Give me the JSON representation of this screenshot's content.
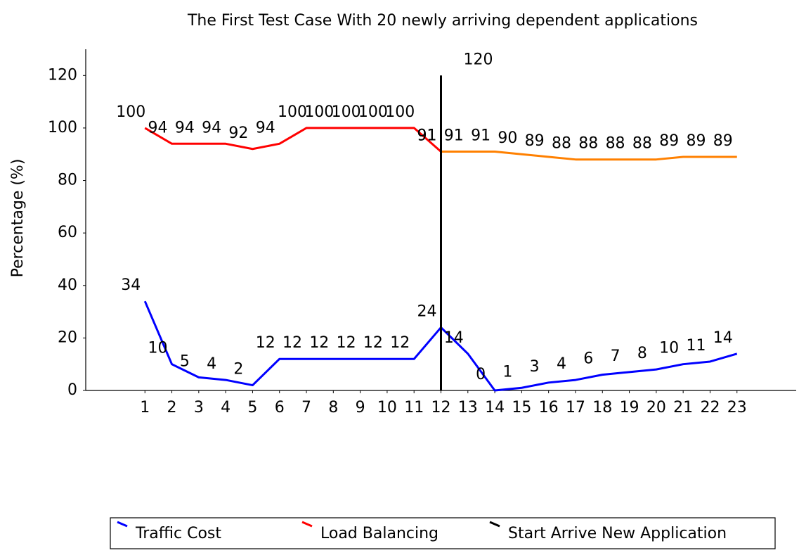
{
  "chart_data": {
    "type": "line",
    "title": "The First Test Case With 20 newly arriving dependent applications",
    "y_label": "Percentage (%)",
    "xlim": [
      -1.2,
      25.2
    ],
    "xticks": [
      1,
      2,
      3,
      4,
      5,
      6,
      7,
      8,
      9,
      10,
      11,
      12,
      13,
      14,
      15,
      16,
      17,
      18,
      19,
      20,
      21,
      22,
      23
    ],
    "ylim": [
      0,
      130
    ],
    "yticks": [
      0,
      20,
      40,
      60,
      80,
      100,
      120
    ],
    "series": [
      {
        "name": "Traffic Cost",
        "color": "#0000ff",
        "x": [
          1,
          2,
          3,
          4,
          5,
          6,
          7,
          8,
          9,
          10,
          11,
          12,
          13,
          14,
          15,
          16,
          17,
          18,
          19,
          20,
          21,
          22,
          23
        ],
        "values": [
          34,
          10,
          5,
          4,
          2,
          12,
          12,
          12,
          12,
          12,
          12,
          24,
          14,
          0,
          1,
          3,
          4,
          6,
          7,
          8,
          10,
          11,
          14
        ]
      },
      {
        "name": "Load Balancing",
        "color": "#ff0000",
        "x": [
          1,
          2,
          3,
          4,
          5,
          6,
          7,
          8,
          9,
          10,
          11,
          12
        ],
        "values": [
          100,
          94,
          94,
          94,
          92,
          94,
          100,
          100,
          100,
          100,
          100,
          91
        ]
      },
      {
        "color": "#ff8000",
        "x": [
          12,
          13,
          14,
          15,
          16,
          17,
          18,
          19,
          20,
          21,
          22,
          23
        ],
        "values": [
          91,
          91,
          91,
          90,
          89,
          88,
          88,
          88,
          88,
          89,
          89,
          89
        ]
      }
    ],
    "vline": {
      "name": "Start Arrive New Application",
      "color": "#000000",
      "x": 12,
      "value": 120
    }
  }
}
